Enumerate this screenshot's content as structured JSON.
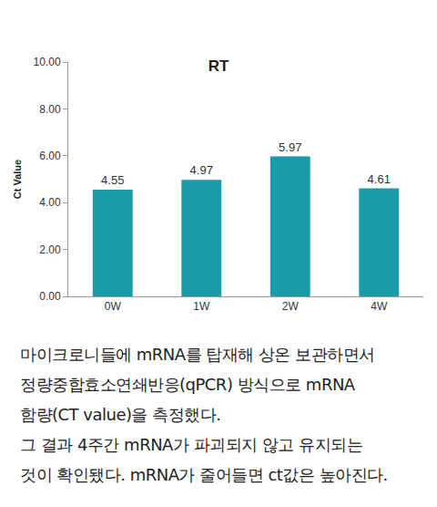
{
  "chart_data": {
    "type": "bar",
    "title": "RT",
    "y_label": "Ct Value",
    "categories": [
      "0W",
      "1W",
      "2W",
      "4W"
    ],
    "values": [
      4.55,
      4.97,
      5.97,
      4.61
    ],
    "color": "#1a9aab",
    "ylim": [
      0,
      10
    ],
    "yticks": [
      {
        "value": 0,
        "label": "0.00"
      },
      {
        "value": 2,
        "label": "2.00"
      },
      {
        "value": 4,
        "label": "4.00"
      },
      {
        "value": 6,
        "label": "6.00"
      },
      {
        "value": 8,
        "label": "8.00"
      },
      {
        "value": 10,
        "label": "10.00"
      }
    ],
    "grid": false,
    "data_labels": true
  },
  "caption": [
    "마이크로니들에 mRNA를 탑재해 상온 보관하면서",
    "정량중합효소연쇄반응(qPCR) 방식으로 mRNA",
    "함량(CT value)을 측정했다.",
    "그 결과 4주간 mRNA가 파괴되지 않고 유지되는",
    "것이 확인됐다. mRNA가 줄어들면 ct값은 높아진다."
  ]
}
